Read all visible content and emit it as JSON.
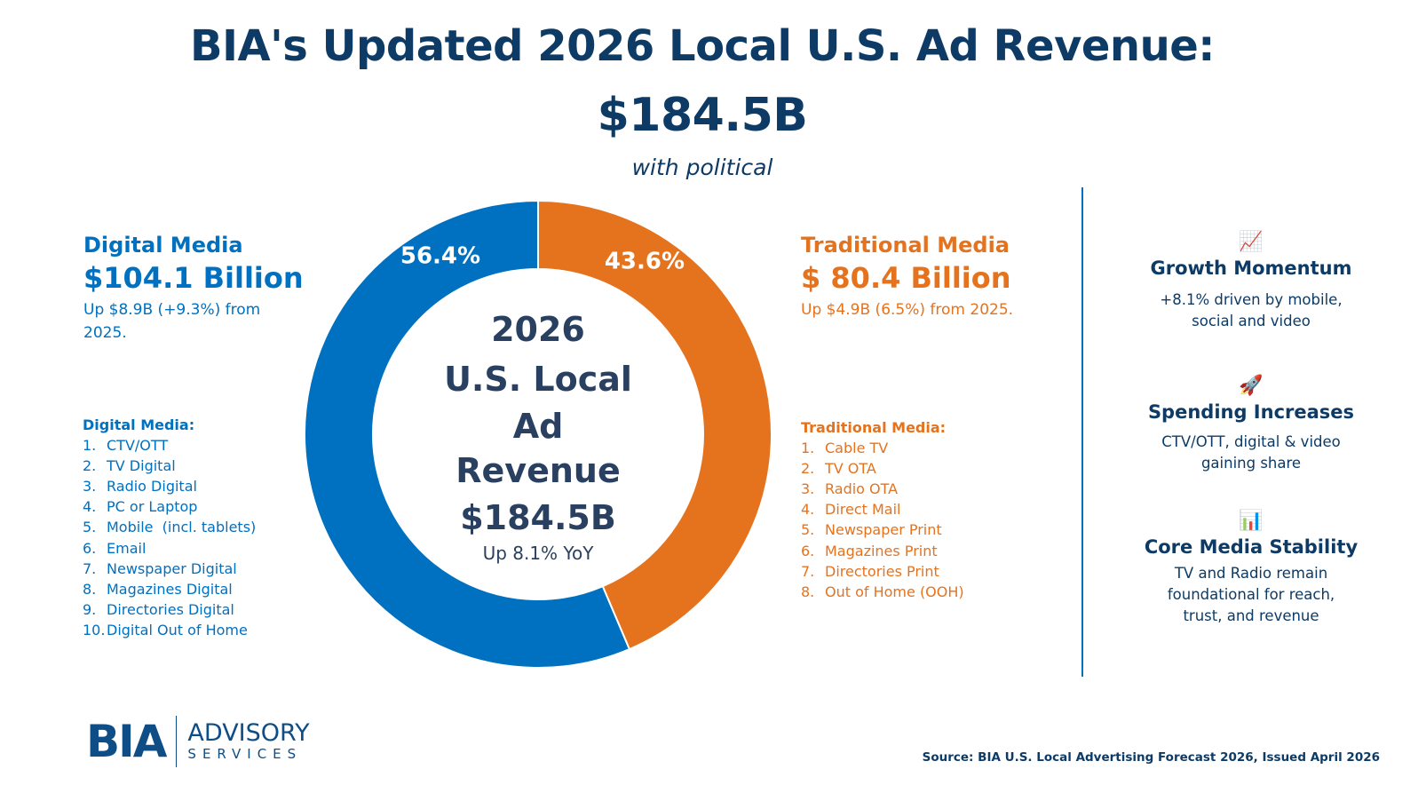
{
  "header": {
    "title_line1": "BIA's Updated 2026 Local U.S. Ad Revenue:",
    "title_line2": "$184.5B",
    "subtitle": "with political"
  },
  "digital": {
    "heading": "Digital Media",
    "amount": "$104.1 Billion",
    "change": "Up $8.9B (+9.3%) from 2025.",
    "list_heading": "Digital Media:",
    "items": [
      "CTV/OTT",
      "TV Digital",
      "Radio Digital",
      "PC or Laptop",
      "Mobile  (incl. tablets)",
      "Email",
      "Newspaper Digital",
      "Magazines Digital",
      "Directories Digital",
      "Digital Out of Home"
    ],
    "numbers": [
      "1.",
      "2.",
      "3.",
      "4.",
      "5.",
      "6.",
      "7.",
      "8.",
      "9.",
      "10."
    ]
  },
  "traditional": {
    "heading": "Traditional Media",
    "amount": "$ 80.4 Billion",
    "change": "Up $4.9B (6.5%) from 2025.",
    "list_heading": "Traditional Media:",
    "items": [
      "Cable TV",
      "TV OTA",
      "Radio OTA",
      "Direct Mail",
      "Newspaper Print",
      "Magazines Print",
      "Directories Print",
      "Out of Home (OOH)"
    ],
    "numbers": [
      "1.",
      "2.",
      "3.",
      "4.",
      "5.",
      "6.",
      "7.",
      "8."
    ]
  },
  "chart_data": {
    "type": "pie",
    "donut": true,
    "categories": [
      "Digital Media",
      "Traditional Media"
    ],
    "values": [
      56.4,
      43.6
    ],
    "data_labels": [
      "56.4%",
      "43.6%"
    ],
    "colors": [
      "#0070c0",
      "#e5731e"
    ],
    "center_text": [
      "2026",
      "U.S. Local",
      "Ad",
      "Revenue",
      "$184.5B"
    ],
    "center_subtext": "Up 8.1% YoY"
  },
  "insights": [
    {
      "icon": "chart-increasing-icon",
      "glyph": "📈",
      "title": "Growth Momentum",
      "text": "+8.1% driven by mobile, social and video"
    },
    {
      "icon": "rocket-icon",
      "glyph": "🚀",
      "title": "Spending Increases",
      "text": "CTV/OTT, digital & video gaining share"
    },
    {
      "icon": "bar-chart-icon",
      "glyph": "📊",
      "title": "Core Media Stability",
      "text": "TV and Radio remain foundational for reach, trust, and revenue"
    }
  ],
  "logo": {
    "brand": "BIA",
    "line1": "ADVISORY",
    "line2": "SERVICES"
  },
  "source": "Source: BIA U.S. Local Advertising Forecast 2026, Issued April 2026"
}
